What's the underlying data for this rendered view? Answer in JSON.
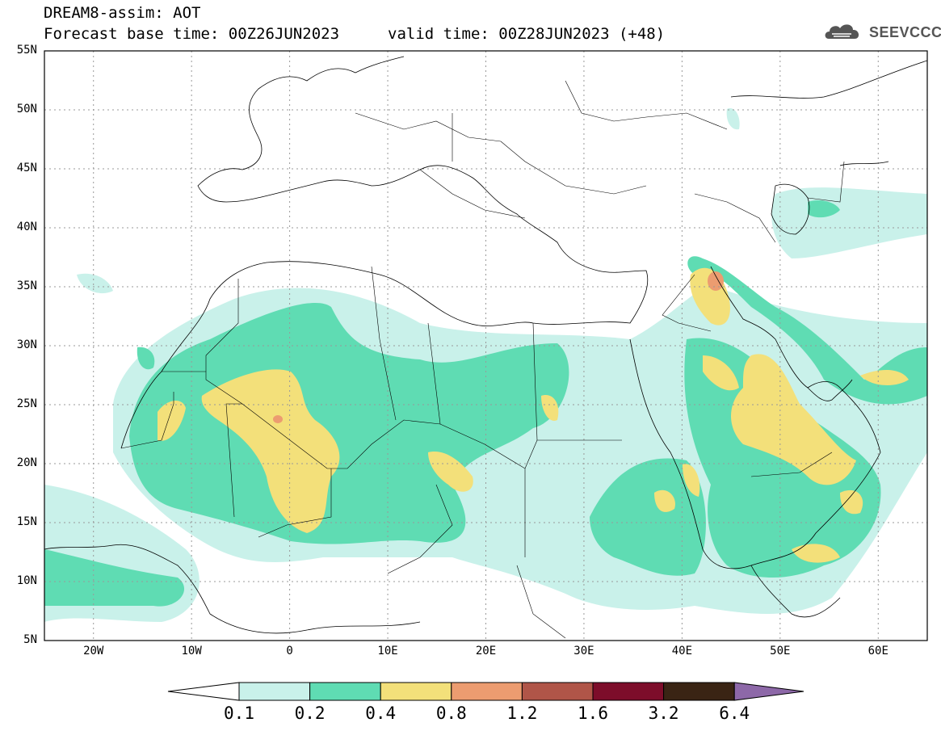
{
  "header": {
    "title_line1": "DREAM8-assim: AOT",
    "title_line2": "Forecast base time: 00Z26JUN2023",
    "valid_time": "valid time: 00Z28JUN2023 (+48)",
    "logo_text": "SEEVCCC"
  },
  "map": {
    "lat_range": [
      5,
      55
    ],
    "lon_range": [
      -25,
      65
    ],
    "lat_labels": [
      "55N",
      "50N",
      "45N",
      "40N",
      "35N",
      "30N",
      "25N",
      "20N",
      "15N",
      "10N",
      "5N"
    ],
    "lon_labels": [
      "20W",
      "10W",
      "0",
      "10E",
      "20E",
      "30E",
      "40E",
      "50E",
      "60E"
    ],
    "grid": true
  },
  "colorbar": {
    "labels": [
      "0.1",
      "0.2",
      "0.4",
      "0.8",
      "1.2",
      "1.6",
      "3.2",
      "6.4"
    ],
    "colors": [
      "#c9f1ea",
      "#5fdcb3",
      "#f3e07a",
      "#ec9c70",
      "#b05548",
      "#7d0d2a",
      "#3a2414",
      "#8d68a8"
    ],
    "under_color": "#ffffff"
  }
}
